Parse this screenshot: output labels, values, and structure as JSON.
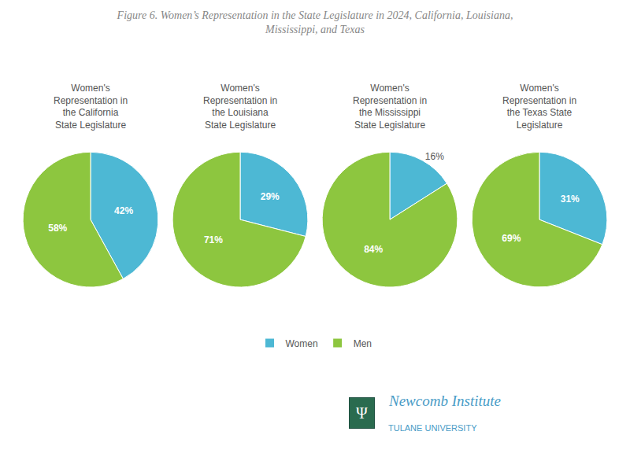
{
  "title": "Figure 6. Women’s Representation in the State Legislature in 2024, California, Louisiana,\nMississippi, and Texas",
  "annotations": [
    "Ψ",
    "Newcomb Institute",
    "TULANE UNIVERSITY"
  ],
  "chart_data": [
    {
      "type": "pie",
      "title": "Women's\nRepresentation in\nthe California\nState Legislature",
      "categories": [
        "Women",
        "Men"
      ],
      "values": [
        42,
        58
      ],
      "value_labels": [
        "42%",
        "58%"
      ],
      "colors": [
        "#4DB8D4",
        "#8DC63F"
      ],
      "data_labels": true,
      "legend": "bottom"
    },
    {
      "type": "pie",
      "title": "Women's\nRepresentation in\nthe Louisiana\nState Legislature",
      "categories": [
        "Women",
        "Men"
      ],
      "values": [
        29,
        71
      ],
      "value_labels": [
        "29%",
        "71%"
      ],
      "colors": [
        "#4DB8D4",
        "#8DC63F"
      ],
      "data_labels": true,
      "legend": "bottom"
    },
    {
      "type": "pie",
      "title": "Women's\nRepresentation in\nthe Mississippi\nState Legislature",
      "categories": [
        "Women",
        "Men"
      ],
      "values": [
        16,
        84
      ],
      "value_labels": [
        "16%",
        "84%"
      ],
      "colors": [
        "#4DB8D4",
        "#8DC63F"
      ],
      "data_labels": true,
      "legend": "bottom"
    },
    {
      "type": "pie",
      "title": "Women's\nRepresentation in\nthe Texas State\nLegislature",
      "categories": [
        "Women",
        "Men"
      ],
      "values": [
        31,
        69
      ],
      "value_labels": [
        "31%",
        "69%"
      ],
      "colors": [
        "#4DB8D4",
        "#8DC63F"
      ],
      "data_labels": true,
      "legend": "bottom"
    }
  ]
}
